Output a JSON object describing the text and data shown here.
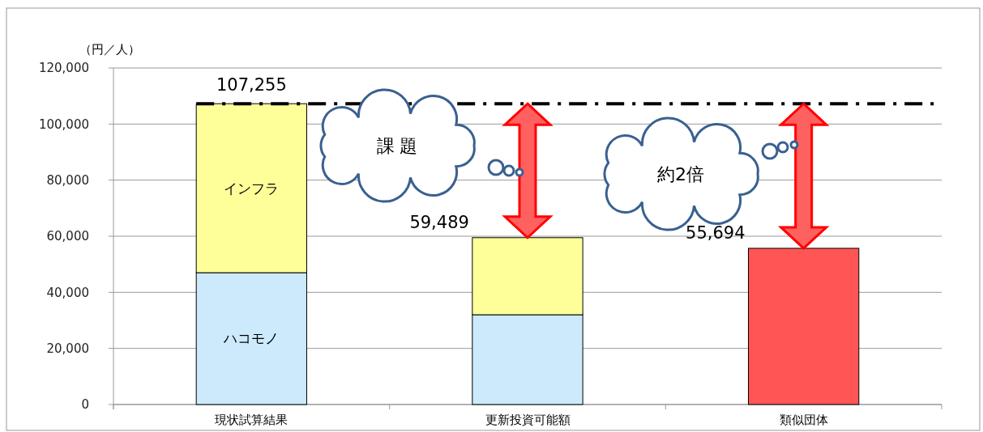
{
  "chart_data": {
    "type": "bar",
    "stacked": true,
    "ylabel": "（円／人）",
    "categories": [
      "現状試算結果",
      "更新投資可能額",
      "類似団体"
    ],
    "series": [
      {
        "name": "ハコモノ",
        "color": "#cceafc",
        "values": [
          47000,
          32000,
          null
        ]
      },
      {
        "name": "インフラ",
        "color": "#ffff99",
        "values": [
          60255,
          27489,
          null
        ]
      },
      {
        "color": "#ff5555",
        "values": [
          null,
          null,
          55694
        ]
      }
    ],
    "totals": [
      "107,255",
      "59,489",
      "55,694"
    ],
    "ylim": [
      0,
      120000
    ],
    "yticks": [
      {
        "value": 0,
        "label": "0"
      },
      {
        "value": 20000,
        "label": "20,000"
      },
      {
        "value": 40000,
        "label": "40,000"
      },
      {
        "value": 60000,
        "label": "60,000"
      },
      {
        "value": 80000,
        "label": "80,000"
      },
      {
        "value": 100000,
        "label": "100,000"
      },
      {
        "value": 120000,
        "label": "120,000"
      }
    ],
    "grid": "y",
    "ref_lines": [
      {
        "axis": "y",
        "value": 107255,
        "color": "#000000",
        "line_style": "dashed"
      }
    ],
    "annotations": [
      "課 題",
      "約2倍"
    ]
  }
}
